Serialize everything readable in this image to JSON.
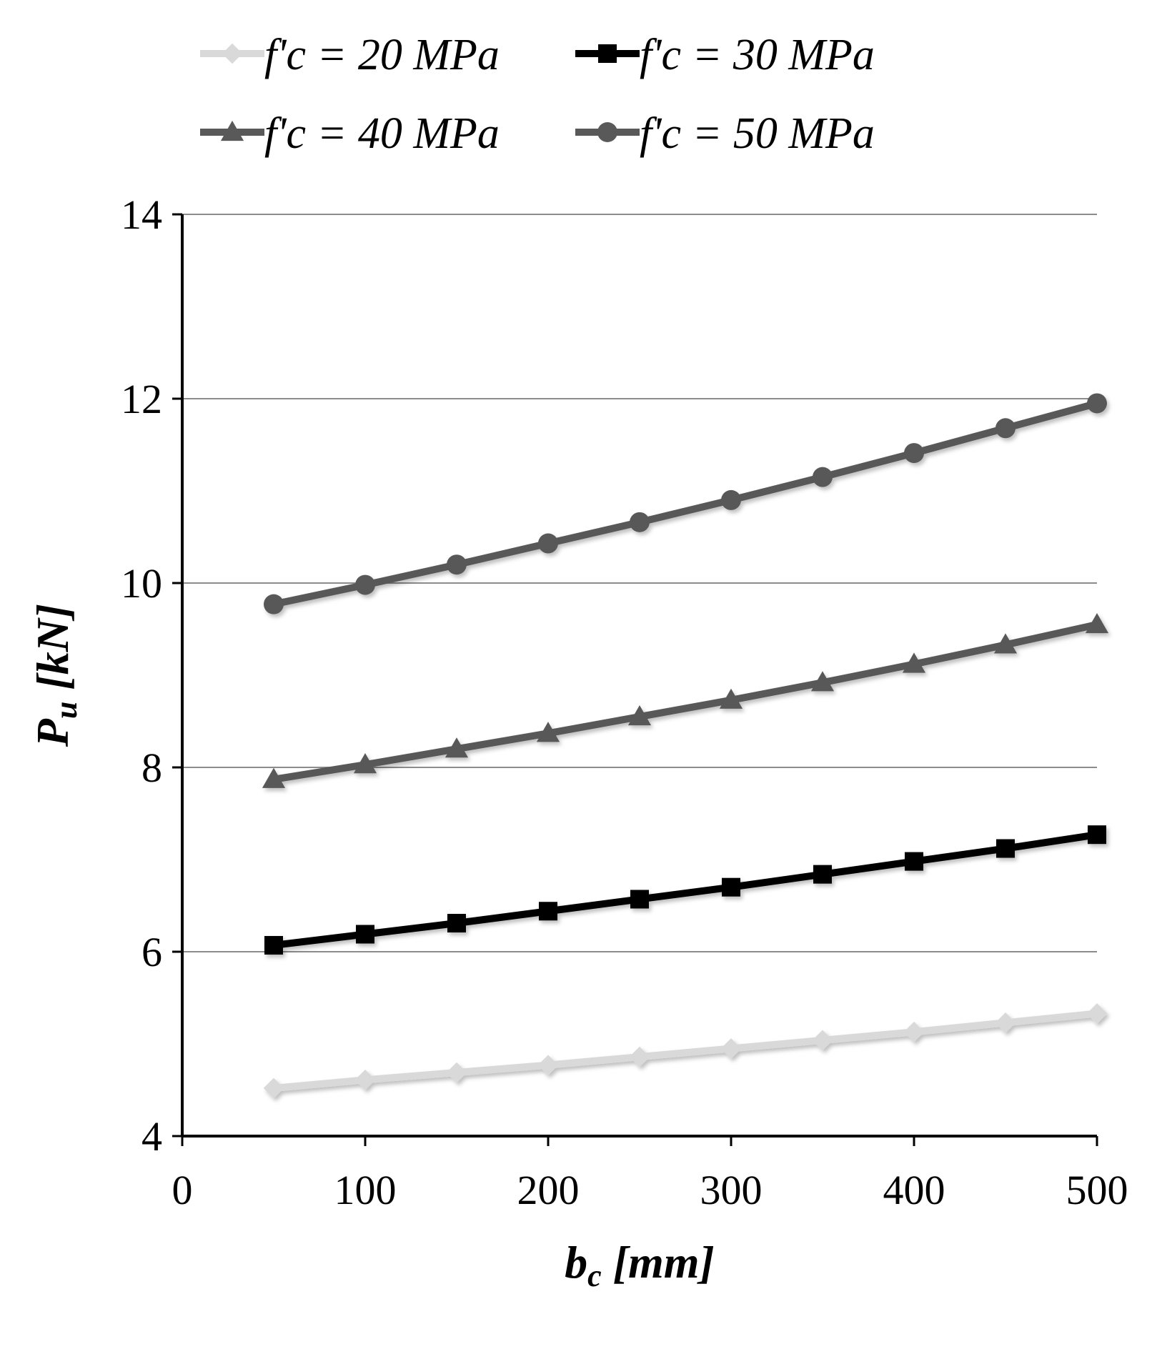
{
  "chart_data": {
    "type": "line",
    "title": "",
    "x": [
      50,
      100,
      150,
      200,
      250,
      300,
      350,
      400,
      450,
      500
    ],
    "xlim": [
      0,
      500
    ],
    "ylim": [
      4,
      14
    ],
    "xticks": [
      "0",
      "100",
      "200",
      "300",
      "400",
      "500"
    ],
    "yticks": [
      "4",
      "6",
      "8",
      "10",
      "12",
      "14"
    ],
    "xlabel_main": "b",
    "xlabel_sub": "c",
    "xlabel_unit": " [mm]",
    "ylabel_main": "P",
    "ylabel_sub": "u",
    "ylabel_unit": " [kN]",
    "grid": "horizontal",
    "legend_position": "top",
    "series": [
      {
        "name": "f'c = 20 MPa",
        "color": "#d9d9d9",
        "marker": "diamond",
        "values": [
          4.52,
          4.61,
          4.69,
          4.77,
          4.86,
          4.95,
          5.04,
          5.13,
          5.23,
          5.33
        ]
      },
      {
        "name": "f'c = 30 MPa",
        "color": "#000000",
        "marker": "square",
        "values": [
          6.07,
          6.19,
          6.31,
          6.44,
          6.57,
          6.7,
          6.84,
          6.98,
          7.12,
          7.27
        ]
      },
      {
        "name": "f'c = 40 MPa",
        "color": "#595959",
        "marker": "triangle",
        "values": [
          7.87,
          8.03,
          8.2,
          8.37,
          8.55,
          8.73,
          8.92,
          9.12,
          9.33,
          9.55
        ]
      },
      {
        "name": "f'c = 50 MPa",
        "color": "#595959",
        "marker": "circle",
        "values": [
          9.77,
          9.98,
          10.2,
          10.43,
          10.66,
          10.9,
          11.15,
          11.41,
          11.68,
          11.95
        ]
      }
    ]
  }
}
